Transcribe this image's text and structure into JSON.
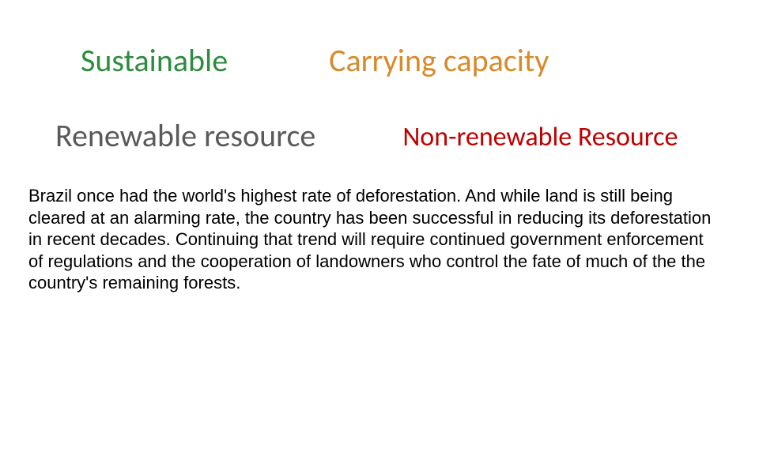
{
  "terms": {
    "sustainable": {
      "text": "Sustainable",
      "color": "#2e8b3f",
      "fontsize": 40
    },
    "carrying_capacity": {
      "text": "Carrying capacity",
      "color": "#d88a2a",
      "fontsize": 40
    },
    "renewable": {
      "text": "Renewable resource",
      "color": "#5a5a5a",
      "fontsize": 40
    },
    "nonrenewable": {
      "text": "Non-renewable Resource",
      "color": "#c00000",
      "fontsize": 34
    }
  },
  "paragraph": {
    "text": "Brazil once had the world's highest rate of deforestation. And while land is still being cleared at an alarming rate, the country has been successful in reducing its deforestation in recent decades. Continuing that trend will require continued government enforcement of regulations and the cooperation of landowners who control the fate of much of the the country's remaining forests.",
    "color": "#000000",
    "fontsize": 22
  },
  "background_color": "#ffffff"
}
